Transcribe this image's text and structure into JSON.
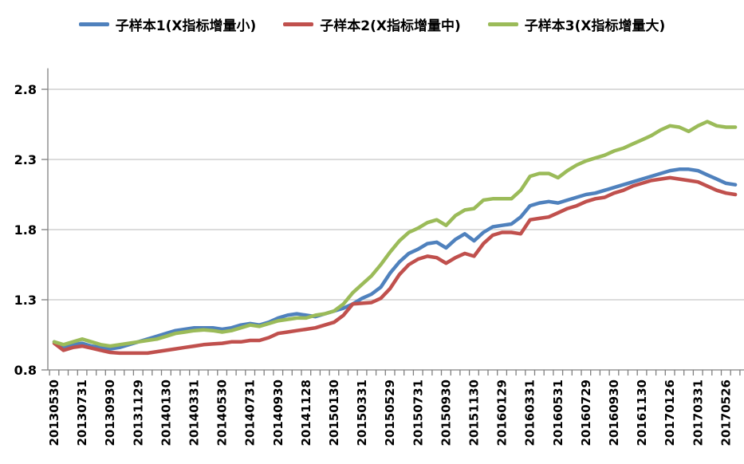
{
  "legend": {
    "items": [
      {
        "label": "子样本1(X指标增量小)",
        "color": "#4F81BD"
      },
      {
        "label": "子样本2(X指标增量中)",
        "color": "#C0504D"
      },
      {
        "label": "子样本3(X指标增量大)",
        "color": "#9BBB59"
      }
    ]
  },
  "chart_data": {
    "type": "line",
    "title": "",
    "xlabel": "",
    "ylabel": "",
    "legend_position": "top",
    "grid": true,
    "x_tick_labels": [
      "20130530",
      "20130731",
      "20130930",
      "20131129",
      "20140130",
      "20140331",
      "20140530",
      "20140731",
      "20140930",
      "20141128",
      "20150130",
      "20150331",
      "20150529",
      "20150731",
      "20150930",
      "20151130",
      "20160129",
      "20160331",
      "20160531",
      "20160729",
      "20160930",
      "20161130",
      "20170126",
      "20170331",
      "20170526"
    ],
    "ticks_per_label": 3,
    "y_axis": {
      "min": 0.8,
      "max": 2.95,
      "tick_values": [
        0.8,
        1.3,
        1.8,
        2.3,
        2.8
      ],
      "tick_labels": [
        "0.8",
        "1.3",
        "1.8",
        "2.3",
        "2.8"
      ]
    },
    "series": [
      {
        "name": "子样本1(X指标增量小)",
        "color": "#4F81BD",
        "values": [
          1.0,
          0.96,
          0.98,
          0.99,
          0.97,
          0.96,
          0.95,
          0.96,
          0.98,
          1.0,
          1.02,
          1.04,
          1.06,
          1.08,
          1.09,
          1.1,
          1.1,
          1.1,
          1.09,
          1.1,
          1.12,
          1.13,
          1.12,
          1.14,
          1.17,
          1.19,
          1.2,
          1.19,
          1.18,
          1.2,
          1.22,
          1.24,
          1.27,
          1.31,
          1.34,
          1.39,
          1.49,
          1.57,
          1.63,
          1.66,
          1.7,
          1.71,
          1.67,
          1.73,
          1.77,
          1.72,
          1.78,
          1.82,
          1.83,
          1.84,
          1.89,
          1.97,
          1.99,
          2.0,
          1.99,
          2.01,
          2.03,
          2.05,
          2.06,
          2.08,
          2.1,
          2.12,
          2.14,
          2.16,
          2.18,
          2.2,
          2.22,
          2.23,
          2.23,
          2.22,
          2.19,
          2.16,
          2.13,
          2.12
        ]
      },
      {
        "name": "子样本2(X指标增量中)",
        "color": "#C0504D",
        "values": [
          0.99,
          0.94,
          0.96,
          0.97,
          0.955,
          0.94,
          0.925,
          0.92,
          0.92,
          0.92,
          0.92,
          0.93,
          0.94,
          0.95,
          0.96,
          0.97,
          0.98,
          0.985,
          0.99,
          1.0,
          1.0,
          1.01,
          1.01,
          1.03,
          1.06,
          1.07,
          1.08,
          1.09,
          1.1,
          1.12,
          1.14,
          1.19,
          1.27,
          1.275,
          1.28,
          1.31,
          1.38,
          1.48,
          1.55,
          1.59,
          1.61,
          1.6,
          1.56,
          1.6,
          1.63,
          1.61,
          1.7,
          1.76,
          1.78,
          1.78,
          1.77,
          1.87,
          1.88,
          1.89,
          1.92,
          1.95,
          1.97,
          2.0,
          2.02,
          2.03,
          2.06,
          2.08,
          2.11,
          2.13,
          2.15,
          2.16,
          2.17,
          2.16,
          2.15,
          2.14,
          2.11,
          2.08,
          2.06,
          2.05
        ]
      },
      {
        "name": "子样本3(X指标增量大)",
        "color": "#9BBB59",
        "values": [
          1.0,
          0.98,
          1.0,
          1.02,
          1.0,
          0.98,
          0.97,
          0.98,
          0.99,
          1.0,
          1.01,
          1.02,
          1.04,
          1.06,
          1.07,
          1.08,
          1.085,
          1.08,
          1.07,
          1.08,
          1.1,
          1.12,
          1.11,
          1.13,
          1.15,
          1.16,
          1.17,
          1.17,
          1.19,
          1.2,
          1.22,
          1.27,
          1.35,
          1.41,
          1.47,
          1.55,
          1.64,
          1.72,
          1.78,
          1.81,
          1.85,
          1.87,
          1.83,
          1.9,
          1.94,
          1.95,
          2.01,
          2.02,
          2.02,
          2.02,
          2.08,
          2.18,
          2.2,
          2.2,
          2.17,
          2.22,
          2.26,
          2.29,
          2.31,
          2.33,
          2.36,
          2.38,
          2.41,
          2.44,
          2.47,
          2.51,
          2.54,
          2.53,
          2.5,
          2.54,
          2.57,
          2.54,
          2.53,
          2.53
        ]
      }
    ],
    "colors": {
      "gridline": "#C6C6C6",
      "axis": "#808080",
      "text": "#000000",
      "background": "#FFFFFF"
    }
  }
}
